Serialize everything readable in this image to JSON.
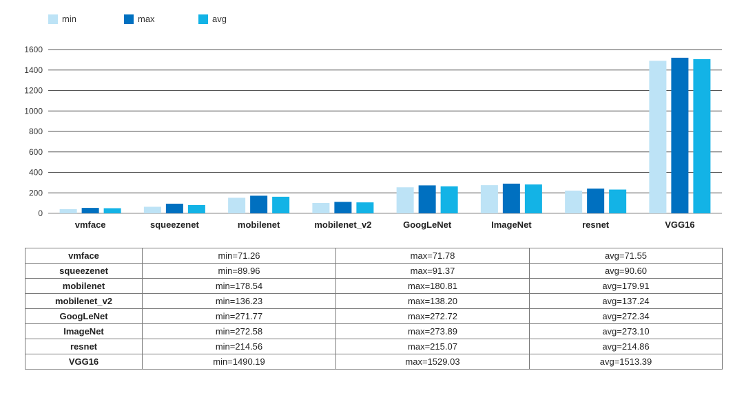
{
  "chart_data": {
    "type": "bar",
    "categories": [
      "vmface",
      "squeezenet",
      "mobilenet",
      "mobilenet_v2",
      "GoogLeNet",
      "ImageNet",
      "resnet",
      "VGG16"
    ],
    "series": [
      {
        "name": "min",
        "color": "#bde3f6",
        "values": [
          41,
          64,
          152,
          101,
          254,
          275,
          222,
          1490
        ]
      },
      {
        "name": "max",
        "color": "#0070c0",
        "values": [
          53,
          94,
          172,
          112,
          273,
          290,
          242,
          1520
        ]
      },
      {
        "name": "avg",
        "color": "#13b3e6",
        "values": [
          50,
          81,
          162,
          107,
          264,
          282,
          232,
          1506
        ]
      }
    ],
    "title": "",
    "xlabel": "",
    "ylabel": "",
    "ylim": [
      0,
      1600
    ],
    "yticks": [
      0,
      200,
      400,
      600,
      800,
      1000,
      1200,
      1400,
      1600
    ],
    "grid": true,
    "legend_position": "top-left"
  },
  "table": {
    "rows": [
      {
        "model": "vmface",
        "min": "min=71.26",
        "max": "max=71.78",
        "avg": "avg=71.55"
      },
      {
        "model": "squeezenet",
        "min": "min=89.96",
        "max": "max=91.37",
        "avg": "avg=90.60"
      },
      {
        "model": "mobilenet",
        "min": "min=178.54",
        "max": "max=180.81",
        "avg": "avg=179.91"
      },
      {
        "model": "mobilenet_v2",
        "min": "min=136.23",
        "max": "max=138.20",
        "avg": "avg=137.24"
      },
      {
        "model": "GoogLeNet",
        "min": "min=271.77",
        "max": "max=272.72",
        "avg": "avg=272.34"
      },
      {
        "model": "ImageNet",
        "min": "min=272.58",
        "max": "max=273.89",
        "avg": "avg=273.10"
      },
      {
        "model": "resnet",
        "min": "min=214.56",
        "max": "max=215.07",
        "avg": "avg=214.86"
      },
      {
        "model": "VGG16",
        "min": "min=1490.19",
        "max": "max=1529.03",
        "avg": "avg=1513.39"
      }
    ]
  }
}
